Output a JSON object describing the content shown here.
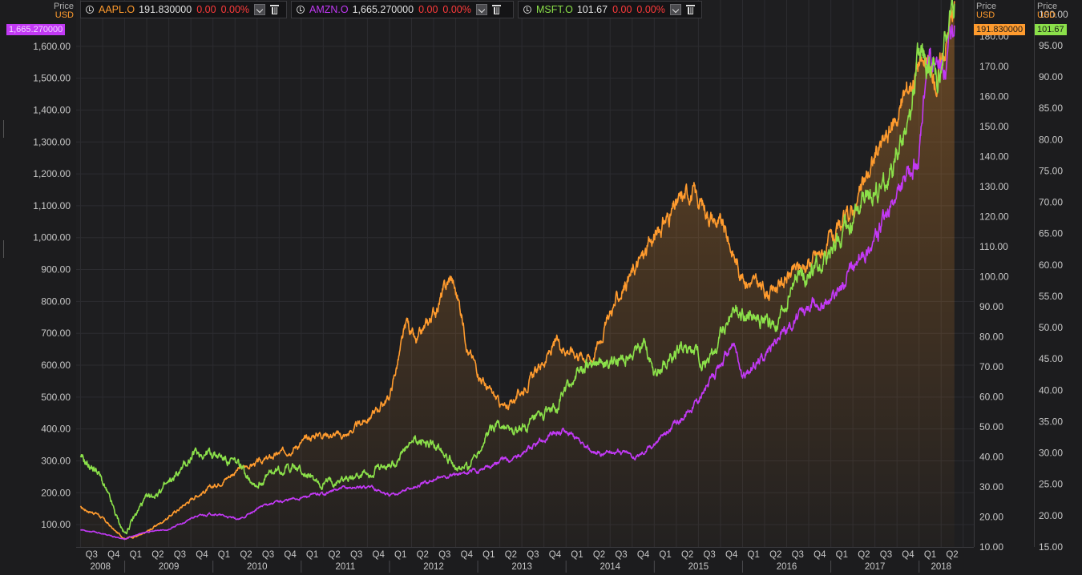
{
  "legend": [
    {
      "symbol": "AAPL.O",
      "price": "191.830000",
      "change": "0.00",
      "pct": "0.00%",
      "color": "#ff9b2e"
    },
    {
      "symbol": "AMZN.O",
      "price": "1,665.270000",
      "change": "0.00",
      "pct": "0.00%",
      "color": "#c239f5"
    },
    {
      "symbol": "MSFT.O",
      "price": "101.67",
      "change": "0.00",
      "pct": "0.00%",
      "color": "#8be04a"
    }
  ],
  "axes": {
    "left": {
      "price_label": "Price",
      "unit": "USD",
      "badge": "1,665.270000",
      "badge_color": "#c239f5"
    },
    "right1": {
      "price_label": "Price",
      "unit": "USD",
      "badge": "191.830000",
      "badge_color": "#ff9b2e"
    },
    "right2": {
      "price_label": "Price",
      "unit": "USD",
      "badge": "101.67",
      "badge_color": "#8be04a"
    }
  },
  "chart_data": {
    "type": "line",
    "title": "",
    "x_quarters": [
      "Q3",
      "Q4",
      "Q1",
      "Q2",
      "Q3",
      "Q4",
      "Q1",
      "Q2",
      "Q3",
      "Q4",
      "Q1",
      "Q2",
      "Q3",
      "Q4",
      "Q1",
      "Q2",
      "Q3",
      "Q4",
      "Q1",
      "Q2",
      "Q3",
      "Q4",
      "Q1",
      "Q2",
      "Q3",
      "Q4",
      "Q1",
      "Q2",
      "Q3",
      "Q4",
      "Q1",
      "Q2",
      "Q3",
      "Q4",
      "Q1",
      "Q2",
      "Q3",
      "Q4",
      "Q1",
      "Q2"
    ],
    "x_years": [
      "2008",
      "2009",
      "2010",
      "2011",
      "2012",
      "2013",
      "2014",
      "2015",
      "2016",
      "2017",
      "2018"
    ],
    "axes": {
      "left": {
        "series": "AMZN.O",
        "ylim": [
          30,
          1720
        ],
        "ticks": [
          100,
          200,
          300,
          400,
          500,
          600,
          700,
          800,
          900,
          1000,
          1100,
          1200,
          1300,
          1400,
          1500,
          1600
        ],
        "tick_labels": [
          "100.00",
          "200.00",
          "300.00",
          "400.00",
          "500.00",
          "600.00",
          "700.00",
          "800.00",
          "900.00",
          "1,000.00",
          "1,100.00",
          "1,200.00",
          "1,300.00",
          "1,400.00",
          "1,500.00",
          "1,600.00"
        ]
      },
      "right1": {
        "series": "AAPL.O",
        "ylim": [
          10,
          189.5
        ],
        "ticks": [
          10,
          20,
          30,
          40,
          50,
          60,
          70,
          80,
          90,
          100,
          110,
          120,
          130,
          140,
          150,
          160,
          170,
          180
        ],
        "tick_labels": [
          "10.00",
          "20.00",
          "30.00",
          "40.00",
          "50.00",
          "60.00",
          "70.00",
          "80.00",
          "90.00",
          "100.00",
          "110.00",
          "120.00",
          "130.00",
          "140.00",
          "150.00",
          "160.00",
          "170.00",
          "180.00"
        ]
      },
      "right2": {
        "series": "MSFT.O",
        "ylim": [
          15,
          101
        ],
        "ticks": [
          15,
          20,
          25,
          30,
          35,
          40,
          45,
          50,
          55,
          60,
          65,
          70,
          75,
          80,
          85,
          90,
          95,
          100
        ],
        "tick_labels": [
          "15.00",
          "20.00",
          "25.00",
          "30.00",
          "35.00",
          "40.00",
          "45.00",
          "50.00",
          "55.00",
          "60.00",
          "65.00",
          "70.00",
          "75.00",
          "80.00",
          "85.00",
          "90.00",
          "95.00",
          "100.00"
        ]
      }
    },
    "series": [
      {
        "name": "AAPL.O",
        "axis": "right1",
        "color": "#ff9b2e",
        "area": true,
        "t": [
          2008.5,
          2008.7,
          2008.9,
          2009.0,
          2009.2,
          2009.5,
          2009.8,
          2010.0,
          2010.3,
          2010.6,
          2010.9,
          2011.2,
          2011.5,
          2011.8,
          2012.0,
          2012.2,
          2012.3,
          2012.5,
          2012.7,
          2012.8,
          2012.9,
          2013.1,
          2013.3,
          2013.5,
          2013.7,
          2013.9,
          2014.1,
          2014.3,
          2014.5,
          2014.7,
          2014.9,
          2015.1,
          2015.3,
          2015.4,
          2015.6,
          2015.8,
          2016.0,
          2016.3,
          2016.6,
          2016.9,
          2017.1,
          2017.3,
          2017.5,
          2017.7,
          2017.9,
          2018.0,
          2018.2,
          2018.4
        ],
        "values": [
          23,
          21,
          15,
          13,
          14,
          20,
          27,
          30,
          36,
          39,
          43,
          48,
          47,
          54,
          60,
          85,
          77,
          88,
          100,
          90,
          75,
          63,
          56,
          62,
          70,
          78,
          75,
          73,
          88,
          99,
          108,
          118,
          125,
          129,
          122,
          115,
          100,
          95,
          102,
          108,
          115,
          125,
          140,
          150,
          165,
          172,
          165,
          191.83
        ]
      },
      {
        "name": "AMZN.O",
        "axis": "left",
        "color": "#c239f5",
        "t": [
          2008.5,
          2008.7,
          2008.9,
          2009.0,
          2009.2,
          2009.5,
          2009.8,
          2010.0,
          2010.3,
          2010.6,
          2010.9,
          2011.2,
          2011.5,
          2011.8,
          2012.0,
          2012.2,
          2012.5,
          2012.8,
          2013.0,
          2013.2,
          2013.5,
          2013.8,
          2014.0,
          2014.2,
          2014.4,
          2014.6,
          2014.8,
          2015.0,
          2015.3,
          2015.6,
          2015.9,
          2016.0,
          2016.2,
          2016.5,
          2016.8,
          2017.0,
          2017.2,
          2017.5,
          2017.8,
          2018.0,
          2018.1,
          2018.3,
          2018.4
        ],
        "values": [
          85,
          75,
          60,
          55,
          75,
          85,
          125,
          135,
          115,
          165,
          180,
          195,
          215,
          220,
          190,
          210,
          240,
          260,
          270,
          295,
          320,
          375,
          400,
          340,
          320,
          335,
          310,
          355,
          430,
          530,
          670,
          560,
          620,
          720,
          790,
          810,
          880,
          1000,
          1150,
          1250,
          1550,
          1530,
          1665.27
        ]
      },
      {
        "name": "MSFT.O",
        "axis": "right2",
        "color": "#8be04a",
        "t": [
          2008.5,
          2008.7,
          2008.9,
          2009.0,
          2009.2,
          2009.5,
          2009.8,
          2010.0,
          2010.3,
          2010.5,
          2010.7,
          2010.9,
          2011.2,
          2011.5,
          2011.8,
          2012.0,
          2012.3,
          2012.6,
          2012.8,
          2012.9,
          2013.2,
          2013.4,
          2013.7,
          2013.9,
          2014.1,
          2014.3,
          2014.6,
          2014.9,
          2015.0,
          2015.3,
          2015.6,
          2015.9,
          2016.1,
          2016.4,
          2016.6,
          2016.9,
          2017.1,
          2017.4,
          2017.7,
          2017.9,
          2018.0,
          2018.2,
          2018.4
        ],
        "values": [
          29,
          27,
          20,
          17,
          22,
          25,
          30,
          30,
          28,
          25,
          27,
          28,
          25,
          26,
          27,
          28,
          32,
          31,
          27,
          28,
          35,
          33,
          35,
          38,
          42,
          45,
          44,
          48,
          43,
          47,
          44,
          53,
          52,
          50,
          58,
          60,
          64,
          70,
          74,
          84,
          94,
          90,
          101.67
        ]
      }
    ]
  }
}
